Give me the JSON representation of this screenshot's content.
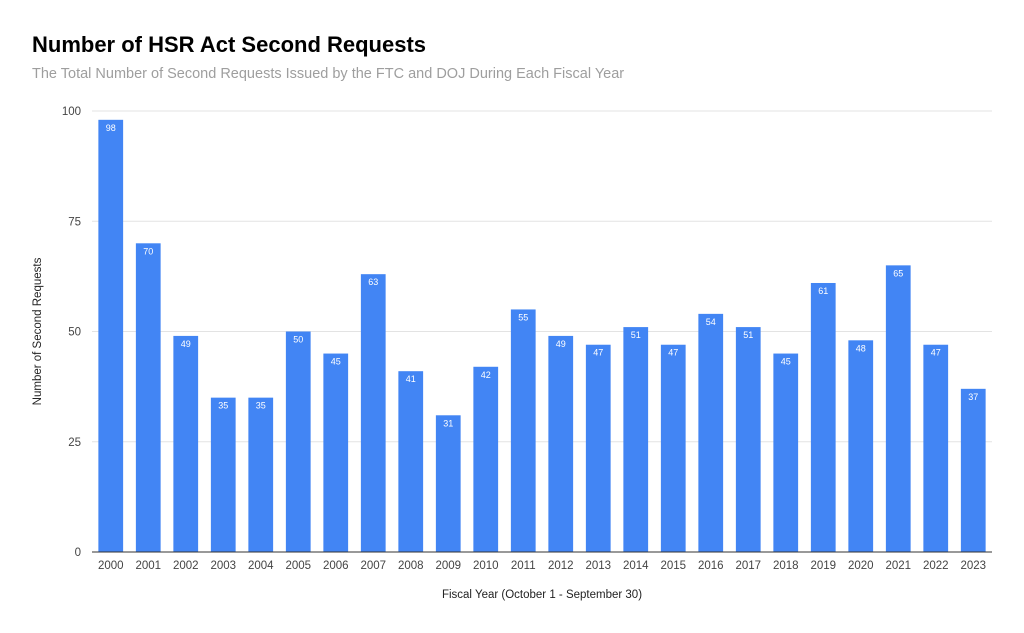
{
  "chart_data": {
    "type": "bar",
    "title": "Number of HSR Act Second Requests",
    "subtitle": "The Total Number of Second Requests Issued by the FTC and DOJ During Each Fiscal Year",
    "xlabel": "Fiscal Year (October 1 - September 30)",
    "ylabel": "Number of Second Requests",
    "ylim": [
      0,
      100
    ],
    "yticks": [
      0,
      25,
      50,
      75,
      100
    ],
    "grid": true,
    "legend": "none",
    "bar_color": "#4285f4",
    "categories": [
      "2000",
      "2001",
      "2002",
      "2003",
      "2004",
      "2005",
      "2006",
      "2007",
      "2008",
      "2009",
      "2010",
      "2011",
      "2012",
      "2013",
      "2014",
      "2015",
      "2016",
      "2017",
      "2018",
      "2019",
      "2020",
      "2021",
      "2022",
      "2023"
    ],
    "values": [
      98,
      70,
      49,
      35,
      35,
      50,
      45,
      63,
      41,
      31,
      42,
      55,
      49,
      47,
      51,
      47,
      54,
      51,
      45,
      61,
      48,
      65,
      47,
      37
    ],
    "data_labels": [
      "98",
      "70",
      "49",
      "35",
      "35",
      "50",
      "45",
      "63",
      "41",
      "31",
      "42",
      "55",
      "49",
      "47",
      "51",
      "47",
      "54",
      "51",
      "45",
      "61",
      "48",
      "65",
      "47",
      "37"
    ]
  }
}
